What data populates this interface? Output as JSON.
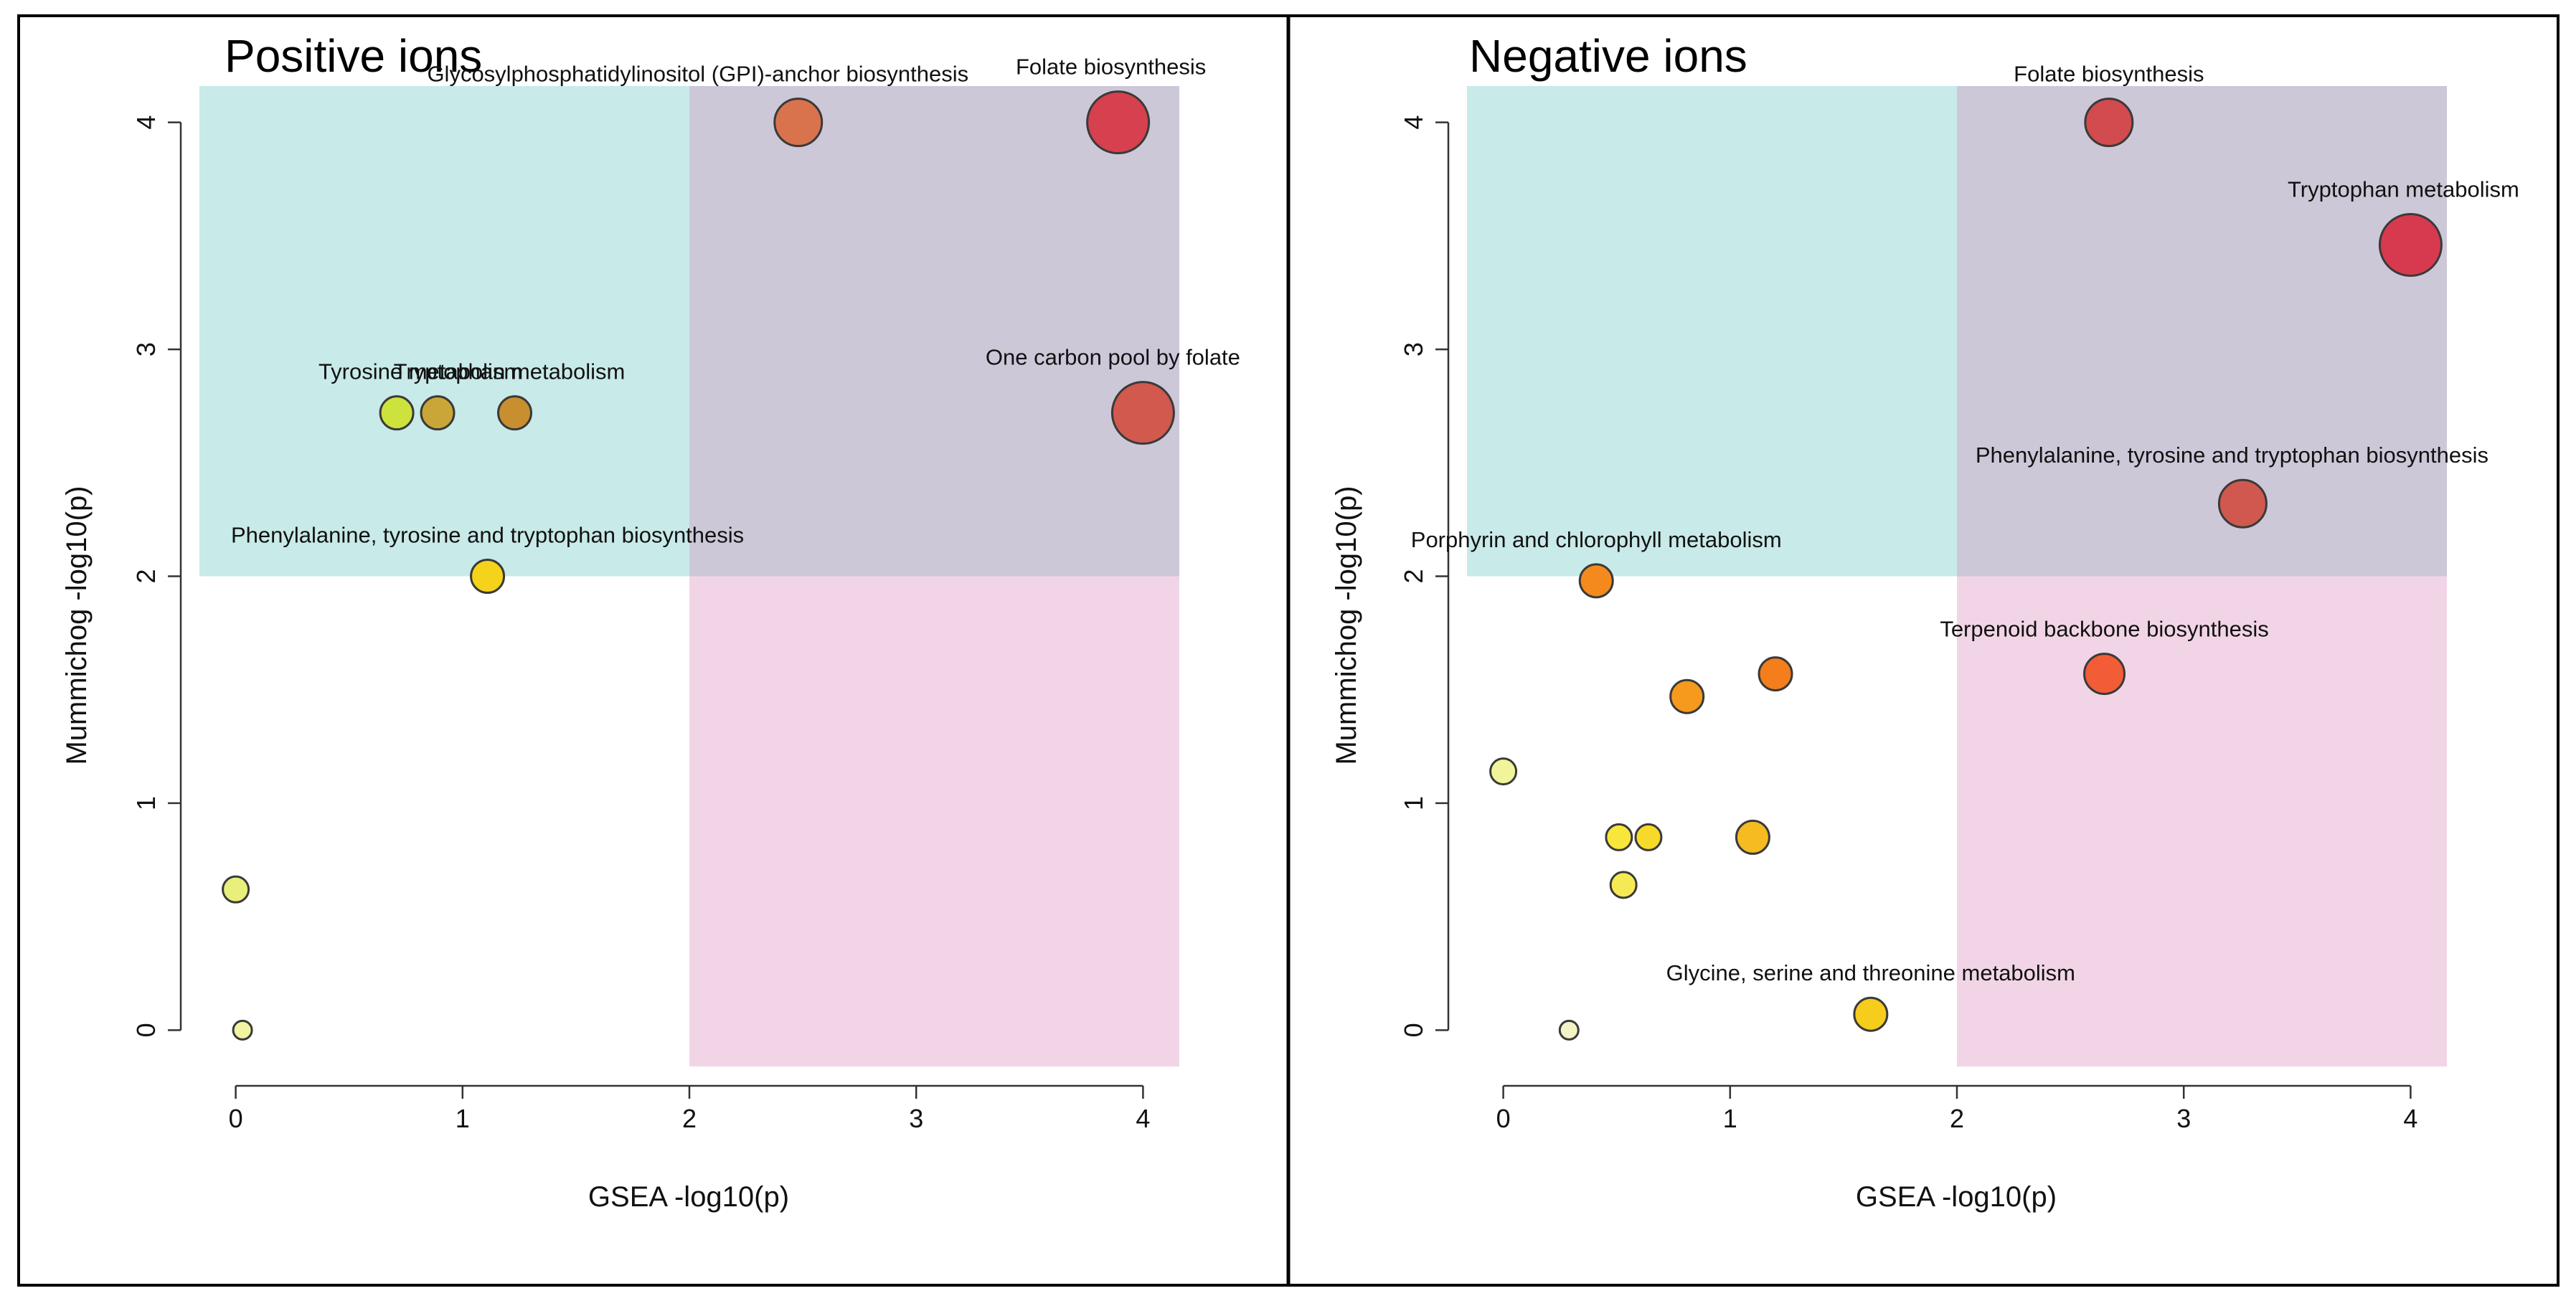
{
  "colors": {
    "teal_region": "#c8eae9",
    "purple_region": "#cdc8d8",
    "pink_region": "#f1d5e6",
    "border": "#000000"
  },
  "chart_data": [
    {
      "type": "scatter",
      "title": "Positive ions",
      "xlabel": "GSEA -log10(p)",
      "ylabel": "Mummichog -log10(p)",
      "xlim": [
        -0.16,
        4.16
      ],
      "ylim": [
        -0.16,
        4.16
      ],
      "x_ticks": [
        "0",
        "1",
        "2",
        "3",
        "4"
      ],
      "y_ticks": [
        "0",
        "1",
        "2",
        "3",
        "4"
      ],
      "threshold": 2,
      "grid": false,
      "regions": [
        {
          "name": "mummichog-significant",
          "x": [
            -0.16,
            2
          ],
          "y": [
            2,
            4.16
          ],
          "color": "#c8eae9"
        },
        {
          "name": "both-significant",
          "x": [
            2,
            4.16
          ],
          "y": [
            2,
            4.16
          ],
          "color": "#cdc8d8"
        },
        {
          "name": "gsea-significant",
          "x": [
            2,
            4.16
          ],
          "y": [
            -0.16,
            2
          ],
          "color": "#f1d5e6"
        }
      ],
      "points": [
        {
          "x": 2.48,
          "y": 4.0,
          "size": 5,
          "color": "#d9734e",
          "label": "Glycosylphosphatidylinositol (GPI)-anchor biosynthesis"
        },
        {
          "x": 3.89,
          "y": 4.0,
          "size": 7,
          "color": "#d7404e",
          "label": "Folate biosynthesis"
        },
        {
          "x": 0.71,
          "y": 2.72,
          "size": 3,
          "color": "#cde23c",
          "label": "Tyrosine metabolism"
        },
        {
          "x": 0.89,
          "y": 2.72,
          "size": 3,
          "color": "#c9a637",
          "label": "Tryptophan metabolism"
        },
        {
          "x": 1.23,
          "y": 2.72,
          "size": 3,
          "color": "#c88f31",
          "label": ""
        },
        {
          "x": 4.0,
          "y": 2.72,
          "size": 7,
          "color": "#d2594e",
          "label": "One carbon pool by folate"
        },
        {
          "x": 1.11,
          "y": 2.0,
          "size": 3,
          "color": "#f4d31a",
          "label": "Phenylalanine, tyrosine and tryptophan biosynthesis"
        },
        {
          "x": 0.0,
          "y": 0.62,
          "size": 2,
          "color": "#e8ef7a",
          "label": ""
        },
        {
          "x": 0.03,
          "y": 0.0,
          "size": 1,
          "color": "#f1f4a0",
          "label": ""
        }
      ]
    },
    {
      "type": "scatter",
      "title": "Negative ions",
      "xlabel": "GSEA -log10(p)",
      "ylabel": "Mummichog -log10(p)",
      "xlim": [
        -0.16,
        4.16
      ],
      "ylim": [
        -0.16,
        4.16
      ],
      "x_ticks": [
        "0",
        "1",
        "2",
        "3",
        "4"
      ],
      "y_ticks": [
        "0",
        "1",
        "2",
        "3",
        "4"
      ],
      "threshold": 2,
      "grid": false,
      "regions": [
        {
          "name": "mummichog-significant",
          "x": [
            -0.16,
            2
          ],
          "y": [
            2,
            4.16
          ],
          "color": "#c8eae9"
        },
        {
          "name": "both-significant",
          "x": [
            2,
            4.16
          ],
          "y": [
            2,
            4.16
          ],
          "color": "#cdc8d8"
        },
        {
          "name": "gsea-significant",
          "x": [
            2,
            4.16
          ],
          "y": [
            -0.16,
            2
          ],
          "color": "#f1d5e6"
        }
      ],
      "points": [
        {
          "x": 2.67,
          "y": 4.0,
          "size": 5,
          "color": "#d24b4e",
          "label": "Folate biosynthesis"
        },
        {
          "x": 4.0,
          "y": 3.46,
          "size": 7,
          "color": "#d73a4e",
          "label": "Tryptophan metabolism"
        },
        {
          "x": 3.26,
          "y": 2.32,
          "size": 5,
          "color": "#d0584e",
          "label": "Phenylalanine, tyrosine and tryptophan biosynthesis"
        },
        {
          "x": 0.41,
          "y": 1.98,
          "size": 3,
          "color": "#f48a1d",
          "label": "Porphyrin and chlorophyll metabolism"
        },
        {
          "x": 2.65,
          "y": 1.57,
          "size": 4,
          "color": "#f25c37",
          "label": "Terpenoid backbone biosynthesis"
        },
        {
          "x": 1.2,
          "y": 1.57,
          "size": 3,
          "color": "#f47e1c",
          "label": ""
        },
        {
          "x": 0.81,
          "y": 1.47,
          "size": 3,
          "color": "#f59a1d",
          "label": ""
        },
        {
          "x": 0.0,
          "y": 1.14,
          "size": 2,
          "color": "#f1f49b",
          "label": ""
        },
        {
          "x": 0.51,
          "y": 0.85,
          "size": 2,
          "color": "#f8e73a",
          "label": ""
        },
        {
          "x": 0.64,
          "y": 0.85,
          "size": 2,
          "color": "#f6da2a",
          "label": ""
        },
        {
          "x": 1.1,
          "y": 0.85,
          "size": 3,
          "color": "#f6bb21",
          "label": ""
        },
        {
          "x": 0.53,
          "y": 0.64,
          "size": 2,
          "color": "#f6ea54",
          "label": ""
        },
        {
          "x": 1.62,
          "y": 0.07,
          "size": 3,
          "color": "#f6cc1d",
          "label": "Glycine, serine and threonine metabolism"
        },
        {
          "x": 0.29,
          "y": 0.0,
          "size": 1,
          "color": "#f3f3c5",
          "label": ""
        }
      ]
    }
  ]
}
